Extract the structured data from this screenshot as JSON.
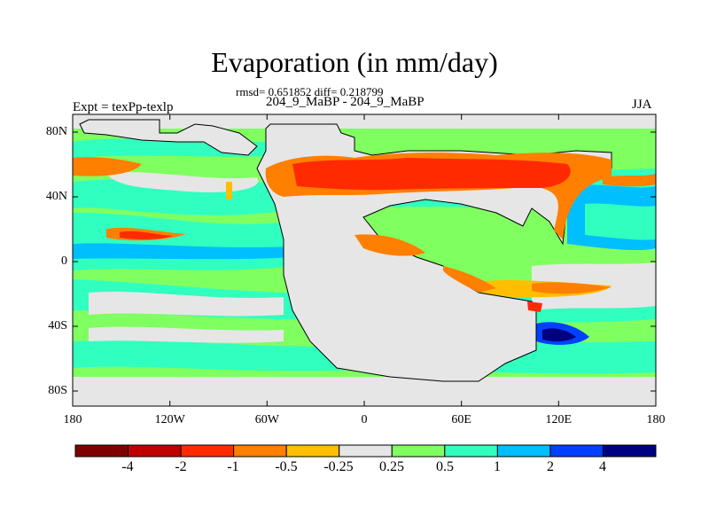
{
  "title": "Evaporation (in mm/day)",
  "stats_line": "rmsd= 0.651852 diff= 0.218799",
  "experiment_line": "204_9_MaBP - 204_9_MaBP",
  "left_label": "Expt = texPp-texlp",
  "right_label": "JJA",
  "y_ticks": [
    "80N",
    "40N",
    "0",
    "40S",
    "80S"
  ],
  "x_ticks": [
    "180",
    "120W",
    "60W",
    "0",
    "60E",
    "120E",
    "180"
  ],
  "colorbar": {
    "colors": [
      "#7f0000",
      "#c00000",
      "#ff2a00",
      "#ff7f00",
      "#ffbf00",
      "#e6e6e6",
      "#80ff60",
      "#30ffc0",
      "#00bfff",
      "#0040ff",
      "#000080"
    ],
    "labels": [
      "-4",
      "-2",
      "-1",
      "-0.5",
      "-0.25",
      "0.25",
      "0.5",
      "1",
      "2",
      "4"
    ]
  }
}
